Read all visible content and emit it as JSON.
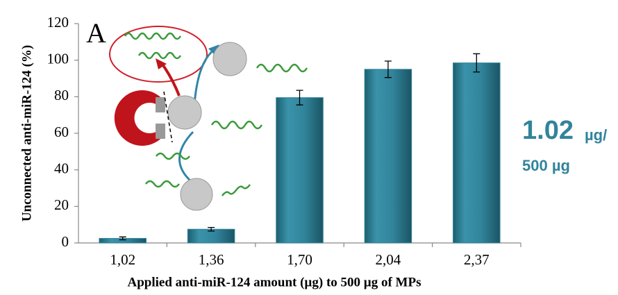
{
  "chart_data": {
    "type": "bar",
    "x_label": "Applied anti-miR-124 amount (µg) to 500 µg of MPs",
    "y_label": "Unconnected anti-miR-124 (%)",
    "panel_label": "A",
    "annotation": {
      "value": "1.02",
      "unit": "µg/",
      "line2": "500 µg"
    },
    "categories": [
      "1,02",
      "1,36",
      "1,70",
      "2,04",
      "2,37"
    ],
    "values": [
      2.5,
      7.5,
      79.5,
      95,
      98.5
    ],
    "errors": [
      0.8,
      1,
      4,
      4.5,
      5
    ],
    "color": "#31849b",
    "ylim": [
      0,
      120
    ],
    "yticks": [
      0,
      20,
      40,
      60,
      80,
      100,
      120
    ],
    "grid": false
  }
}
